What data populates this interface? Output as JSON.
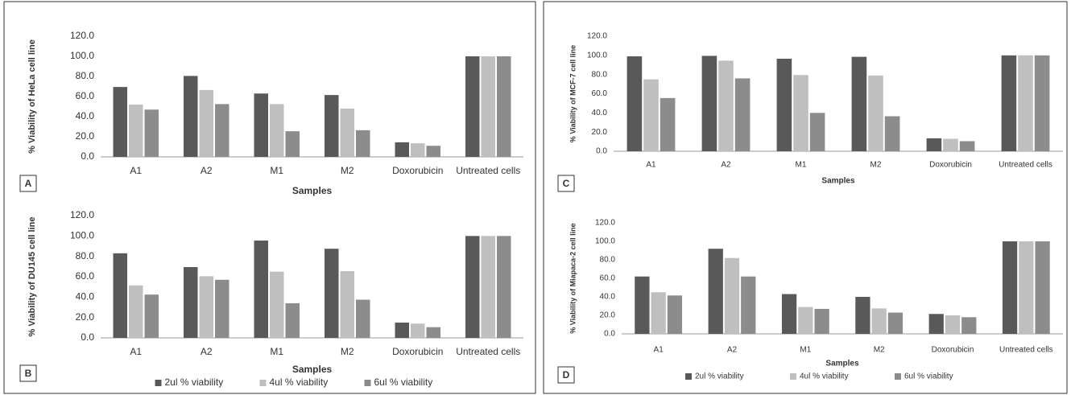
{
  "chart_data": [
    {
      "type": "bar",
      "panel": "A",
      "ylabel": "% Viability of HeLa cell line",
      "xlabel": "Samples",
      "categories": [
        "A1",
        "A2",
        "M1",
        "M2",
        "Doxorubicin",
        "Untreated cells"
      ],
      "series": [
        {
          "color": "#595959",
          "values": [
            69.5,
            80.5,
            63,
            61.5,
            14.5,
            100
          ]
        },
        {
          "color": "#bfbfbf",
          "values": [
            52,
            66.5,
            52.5,
            48,
            13.5,
            100
          ]
        },
        {
          "color": "#8c8c8c",
          "values": [
            47,
            52.5,
            25.5,
            26.5,
            11,
            100
          ]
        }
      ],
      "ylim": [
        0,
        120
      ],
      "yticks": [
        {
          "value": 0,
          "label": "0.0"
        },
        {
          "value": 20,
          "label": "20.0"
        },
        {
          "value": 40,
          "label": "40.0"
        },
        {
          "value": 60,
          "label": "60.0"
        },
        {
          "value": 80,
          "label": "80.0"
        },
        {
          "value": 100,
          "label": "100.0"
        },
        {
          "value": 120,
          "label": "120.0"
        }
      ]
    },
    {
      "type": "bar",
      "panel": "B",
      "ylabel": "% Viability of DU145 cell line",
      "xlabel": "Samples",
      "categories": [
        "A1",
        "A2",
        "M1",
        "M2",
        "Doxorubicin",
        "Untreated cells"
      ],
      "series": [
        {
          "name": "2ul % viability",
          "color": "#595959",
          "values": [
            83,
            69.5,
            95.5,
            87.5,
            15,
            100
          ]
        },
        {
          "name": "4ul % viability",
          "color": "#bfbfbf",
          "values": [
            51.5,
            60.5,
            65,
            65.5,
            14,
            100
          ]
        },
        {
          "name": "6ul % viability",
          "color": "#8c8c8c",
          "values": [
            42.5,
            57,
            34,
            37.5,
            10.5,
            100
          ]
        }
      ],
      "ylim": [
        0,
        120
      ],
      "yticks": [
        {
          "value": 0,
          "label": "0.0"
        },
        {
          "value": 20,
          "label": "20.0"
        },
        {
          "value": 40,
          "label": "40.0"
        },
        {
          "value": 60,
          "label": "60.0"
        },
        {
          "value": 80,
          "label": "80.0"
        },
        {
          "value": 100,
          "label": "100.0"
        },
        {
          "value": 120,
          "label": "120.0"
        }
      ]
    },
    {
      "type": "bar",
      "panel": "C",
      "ylabel": "% Viability of MCF-7 cell line",
      "xlabel": "Samples",
      "categories": [
        "A1",
        "A2",
        "M1",
        "M2",
        "Doxorubicin",
        "Untreated cells"
      ],
      "series": [
        {
          "color": "#595959",
          "values": [
            99,
            99.5,
            96.5,
            98.5,
            13.5,
            100
          ]
        },
        {
          "color": "#bfbfbf",
          "values": [
            75,
            94.5,
            79.5,
            79,
            13,
            100
          ]
        },
        {
          "color": "#8c8c8c",
          "values": [
            55.5,
            76,
            40,
            36.5,
            10.5,
            100
          ]
        }
      ],
      "ylim": [
        0,
        120
      ],
      "yticks": [
        {
          "value": 0,
          "label": "0.0"
        },
        {
          "value": 20,
          "label": "20.0"
        },
        {
          "value": 40,
          "label": "40.0"
        },
        {
          "value": 60,
          "label": "60.0"
        },
        {
          "value": 80,
          "label": "80.0"
        },
        {
          "value": 100,
          "label": "100.0"
        },
        {
          "value": 120,
          "label": "120.0"
        }
      ]
    },
    {
      "type": "bar",
      "panel": "D",
      "ylabel": "% Viability of Miapaca-2 cell line",
      "xlabel": "Samples",
      "categories": [
        "A1",
        "A2",
        "M1",
        "M2",
        "Doxorubicin",
        "Untreated cells"
      ],
      "series": [
        {
          "name": "2ul % viability",
          "color": "#595959",
          "values": [
            62,
            92,
            43,
            40,
            21.5,
            100
          ]
        },
        {
          "name": "4ul % viability",
          "color": "#bfbfbf",
          "values": [
            45,
            82,
            29,
            27.5,
            20,
            100
          ]
        },
        {
          "name": "6ul % viability",
          "color": "#8c8c8c",
          "values": [
            41.5,
            62,
            27,
            23,
            18,
            100
          ]
        }
      ],
      "ylim": [
        0,
        120
      ],
      "yticks": [
        {
          "value": 0,
          "label": "0.0"
        },
        {
          "value": 20,
          "label": "20.0"
        },
        {
          "value": 40,
          "label": "40.0"
        },
        {
          "value": 60,
          "label": "60.0"
        },
        {
          "value": 80,
          "label": "80.0"
        },
        {
          "value": 100,
          "label": "100.0"
        },
        {
          "value": 120,
          "label": "120.0"
        }
      ]
    }
  ]
}
